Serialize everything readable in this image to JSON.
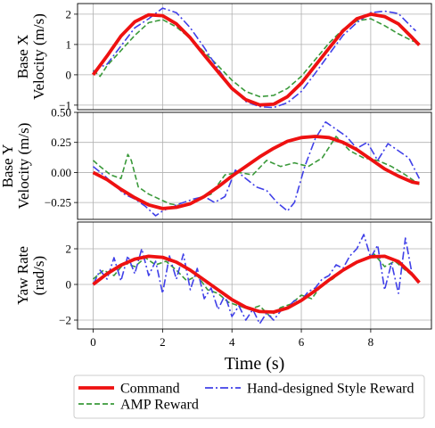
{
  "chart_data": {
    "type": "line",
    "shared_xlabel": "Time (s)",
    "legend": {
      "placement": "bottom",
      "entries": [
        {
          "name": "Command",
          "color": "#ee1111",
          "style": "solid"
        },
        {
          "name": "AMP Reward",
          "color": "#3a993a",
          "style": "dashed"
        },
        {
          "name": "Hand-designed Style Reward",
          "color": "#4040e8",
          "style": "dashdot"
        }
      ]
    },
    "xlim": [
      -0.45,
      9.75
    ],
    "xticks": [
      0,
      2,
      4,
      6,
      8
    ],
    "xticklabels": [
      "0",
      "2",
      "4",
      "6",
      "8"
    ],
    "grid": true,
    "panels": [
      {
        "id": "base-x",
        "ylabel_lines": [
          "Base X",
          "Velocity (m/s)"
        ],
        "ylim": [
          -1.15,
          2.35
        ],
        "yticks": [
          -1,
          0,
          1,
          2
        ],
        "yticklabels": [
          "−1",
          "0",
          "1",
          "2"
        ],
        "series": [
          {
            "name": "Command",
            "x": [
              0,
              0.4,
              0.8,
              1.2,
              1.6,
              2.0,
              2.4,
              2.8,
              3.2,
              3.6,
              4.0,
              4.4,
              4.8,
              5.2,
              5.6,
              6.0,
              6.4,
              6.8,
              7.2,
              7.6,
              8.0,
              8.4,
              8.8,
              9.2,
              9.4
            ],
            "y": [
              0.0,
              0.62,
              1.28,
              1.75,
              1.98,
              1.95,
              1.68,
              1.22,
              0.65,
              0.1,
              -0.45,
              -0.82,
              -0.99,
              -0.97,
              -0.72,
              -0.28,
              0.3,
              0.88,
              1.45,
              1.85,
              2.0,
              1.92,
              1.68,
              1.22,
              0.98
            ]
          },
          {
            "name": "AMP Reward",
            "x": [
              0,
              0.2,
              0.4,
              0.8,
              1.2,
              1.6,
              2.0,
              2.4,
              2.8,
              3.2,
              3.6,
              4.0,
              4.4,
              4.8,
              5.2,
              5.6,
              6.0,
              6.4,
              6.8,
              7.2,
              7.6,
              8.0,
              8.4,
              8.8,
              9.2,
              9.4
            ],
            "y": [
              0.15,
              -0.05,
              0.3,
              0.8,
              1.3,
              1.72,
              1.82,
              1.58,
              1.2,
              0.75,
              0.3,
              -0.18,
              -0.55,
              -0.72,
              -0.68,
              -0.45,
              -0.05,
              0.5,
              1.05,
              1.5,
              1.78,
              1.85,
              1.62,
              1.35,
              1.12,
              1.05
            ]
          },
          {
            "name": "Hand-designed Style Reward",
            "x": [
              0,
              0.2,
              0.4,
              0.8,
              1.2,
              1.6,
              2.0,
              2.4,
              2.8,
              3.2,
              3.6,
              4.0,
              4.4,
              4.8,
              5.2,
              5.6,
              6.0,
              6.4,
              6.8,
              7.2,
              7.6,
              8.0,
              8.4,
              8.8,
              9.2,
              9.3
            ],
            "y": [
              0.1,
              0.25,
              0.35,
              0.95,
              1.55,
              1.85,
              2.2,
              2.05,
              1.55,
              0.9,
              0.2,
              -0.45,
              -0.88,
              -1.05,
              -1.08,
              -0.92,
              -0.55,
              0.05,
              0.68,
              1.3,
              1.72,
              2.05,
              2.1,
              2.02,
              1.55,
              1.45
            ]
          }
        ]
      },
      {
        "id": "base-y",
        "ylabel_lines": [
          "Base Y",
          "Velocity (m/s)"
        ],
        "ylim": [
          -0.39,
          0.5
        ],
        "yticks": [
          -0.25,
          0.0,
          0.25,
          0.5
        ],
        "yticklabels": [
          "−0.25",
          "0.00",
          "0.25",
          "0.50"
        ],
        "series": [
          {
            "name": "Command",
            "x": [
              0,
              0.4,
              0.8,
              1.2,
              1.6,
              2.0,
              2.4,
              2.8,
              3.2,
              3.6,
              4.0,
              4.4,
              4.8,
              5.2,
              5.6,
              6.0,
              6.4,
              6.8,
              7.2,
              7.6,
              8.0,
              8.4,
              8.8,
              9.2,
              9.4
            ],
            "y": [
              0.0,
              -0.06,
              -0.14,
              -0.21,
              -0.27,
              -0.3,
              -0.29,
              -0.26,
              -0.2,
              -0.12,
              -0.03,
              0.05,
              0.13,
              0.2,
              0.26,
              0.29,
              0.3,
              0.29,
              0.25,
              0.19,
              0.11,
              0.03,
              -0.03,
              -0.08,
              -0.09
            ]
          },
          {
            "name": "AMP Reward",
            "x": [
              0,
              0.2,
              0.5,
              0.8,
              1.0,
              1.1,
              1.3,
              1.6,
              1.9,
              2.2,
              2.6,
              3.0,
              3.4,
              3.8,
              4.2,
              4.6,
              5.0,
              5.4,
              5.8,
              6.2,
              6.6,
              7.0,
              7.4,
              7.8,
              8.2,
              8.6,
              9.0,
              9.4
            ],
            "y": [
              0.1,
              0.05,
              -0.02,
              -0.05,
              0.15,
              0.1,
              -0.12,
              -0.18,
              -0.22,
              -0.26,
              -0.28,
              -0.22,
              -0.18,
              -0.02,
              0.0,
              -0.02,
              0.1,
              0.05,
              0.08,
              0.05,
              0.12,
              0.3,
              0.18,
              0.12,
              0.1,
              0.05,
              -0.02,
              -0.1
            ]
          },
          {
            "name": "Hand-designed Style Reward",
            "x": [
              0,
              0.3,
              0.6,
              0.9,
              1.2,
              1.5,
              1.8,
              2.0,
              2.3,
              2.6,
              2.9,
              3.2,
              3.5,
              3.8,
              4.1,
              4.4,
              4.7,
              5.0,
              5.3,
              5.6,
              5.8,
              6.1,
              6.4,
              6.7,
              7.0,
              7.3,
              7.6,
              7.9,
              8.2,
              8.5,
              8.8,
              9.1,
              9.4
            ],
            "y": [
              0.05,
              -0.02,
              -0.1,
              -0.18,
              -0.22,
              -0.28,
              -0.36,
              -0.32,
              -0.28,
              -0.25,
              -0.22,
              -0.2,
              -0.25,
              -0.2,
              0.02,
              -0.05,
              -0.12,
              -0.15,
              -0.25,
              -0.32,
              -0.25,
              0.05,
              0.28,
              0.42,
              0.36,
              0.3,
              0.2,
              0.25,
              0.1,
              0.24,
              0.18,
              0.12,
              -0.05
            ]
          }
        ]
      },
      {
        "id": "yaw",
        "ylabel_lines": [
          "Yaw Rate",
          "(rad/s)"
        ],
        "ylim": [
          -2.5,
          3.5
        ],
        "yticks": [
          -2,
          0,
          2
        ],
        "yticklabels": [
          "−2",
          "0",
          "2"
        ],
        "series": [
          {
            "name": "Command",
            "x": [
              0,
              0.4,
              0.8,
              1.2,
              1.6,
              2.0,
              2.4,
              2.8,
              3.2,
              3.6,
              4.0,
              4.4,
              4.8,
              5.2,
              5.6,
              6.0,
              6.4,
              6.8,
              7.2,
              7.6,
              8.0,
              8.4,
              8.8,
              9.2,
              9.4
            ],
            "y": [
              0.0,
              0.6,
              1.08,
              1.42,
              1.58,
              1.52,
              1.25,
              0.8,
              0.25,
              -0.3,
              -0.85,
              -1.28,
              -1.52,
              -1.55,
              -1.32,
              -0.9,
              -0.35,
              0.25,
              0.8,
              1.25,
              1.55,
              1.58,
              1.28,
              0.55,
              0.1
            ]
          },
          {
            "name": "AMP Reward",
            "x": [
              0,
              0.3,
              0.6,
              0.9,
              1.2,
              1.5,
              1.8,
              2.1,
              2.4,
              2.7,
              3.0,
              3.3,
              3.6,
              3.9,
              4.2,
              4.5,
              4.8,
              5.1,
              5.4,
              5.7,
              6.0,
              6.3,
              6.6,
              6.9,
              7.2,
              7.5,
              7.8,
              8.1,
              8.4,
              8.7,
              9.0,
              9.4
            ],
            "y": [
              0.3,
              0.8,
              0.5,
              1.2,
              1.0,
              1.5,
              1.1,
              1.3,
              0.8,
              0.2,
              0.5,
              -0.3,
              -0.5,
              -1.0,
              -1.2,
              -1.4,
              -1.2,
              -1.8,
              -1.3,
              -1.1,
              -0.6,
              -0.8,
              0.0,
              0.3,
              0.8,
              1.2,
              1.4,
              1.7,
              1.0,
              1.3,
              0.8,
              0.2
            ]
          },
          {
            "name": "Hand-designed Style Reward",
            "x": [
              0,
              0.2,
              0.4,
              0.6,
              0.8,
              1.0,
              1.2,
              1.4,
              1.6,
              1.8,
              2.0,
              2.2,
              2.4,
              2.6,
              2.8,
              3.0,
              3.2,
              3.4,
              3.6,
              3.8,
              4.0,
              4.2,
              4.4,
              4.6,
              4.8,
              5.0,
              5.2,
              5.4,
              5.6,
              5.8,
              6.0,
              6.2,
              6.4,
              6.6,
              6.8,
              7.0,
              7.2,
              7.4,
              7.6,
              7.8,
              8.0,
              8.2,
              8.4,
              8.6,
              8.8,
              9.0,
              9.2,
              9.4
            ],
            "y": [
              0.0,
              0.8,
              0.3,
              1.5,
              0.2,
              1.6,
              0.6,
              2.0,
              0.5,
              1.3,
              -0.5,
              1.6,
              0.3,
              1.7,
              -0.3,
              0.9,
              -0.8,
              -0.2,
              -1.4,
              -0.6,
              -1.8,
              -1.2,
              -2.0,
              -1.4,
              -2.2,
              -1.6,
              -2.0,
              -1.5,
              -1.3,
              -0.9,
              -0.9,
              -0.4,
              -0.2,
              0.3,
              0.5,
              1.1,
              0.9,
              1.6,
              2.0,
              2.8,
              1.5,
              2.2,
              -0.3,
              1.2,
              -0.5,
              2.6,
              0.5,
              0.0
            ]
          }
        ]
      }
    ]
  }
}
